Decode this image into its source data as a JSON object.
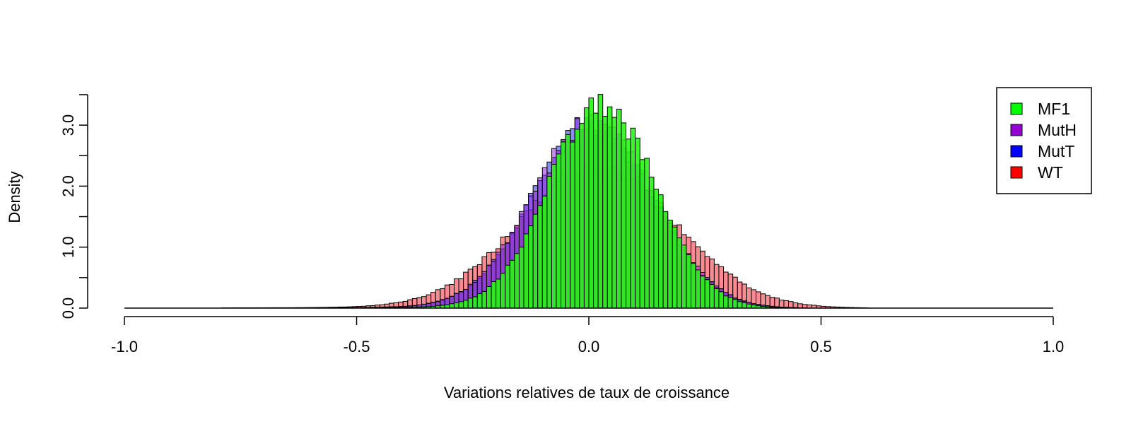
{
  "chart_data": {
    "type": "histogram",
    "xlabel": "Variations relatives de taux de croissance",
    "ylabel": "Density",
    "xlim": [
      -1.0,
      1.0
    ],
    "ylim": [
      0,
      3.5
    ],
    "x_ticks": [
      "-1.0",
      "-0.5",
      "0.0",
      "0.5",
      "1.0"
    ],
    "x_tick_values": [
      -1.0,
      -0.5,
      0.0,
      0.5,
      1.0
    ],
    "y_ticks": [
      "0.0",
      "1.0",
      "2.0",
      "3.0"
    ],
    "y_tick_values": [
      0.0,
      1.0,
      2.0,
      3.0
    ],
    "y_minor_tick_values": [
      0.5,
      1.5,
      2.5,
      3.5
    ],
    "bin_width": 0.01,
    "grid": false,
    "legend_placement": "top-right",
    "series": [
      {
        "name": "WT",
        "color": "#ff0000",
        "fill": "rgba(245,70,80,0.62)",
        "peak_x": 0.02,
        "peak_density": 2.25,
        "spread": 0.17
      },
      {
        "name": "MutT",
        "color": "#0000ff",
        "fill": "rgba(40,50,230,0.55)",
        "peak_x": 0.01,
        "peak_density": 3.0,
        "spread": 0.13
      },
      {
        "name": "MutH",
        "color": "#9400d3",
        "fill": "rgba(150,40,220,0.55)",
        "peak_x": 0.01,
        "peak_density": 3.0,
        "spread": 0.13
      },
      {
        "name": "MF1",
        "color": "#00ff00",
        "fill": "rgba(40,245,20,0.90)",
        "peak_x": 0.03,
        "peak_density": 3.3,
        "spread": 0.115
      }
    ],
    "legend": [
      "MF1",
      "MutH",
      "MutT",
      "WT"
    ]
  }
}
